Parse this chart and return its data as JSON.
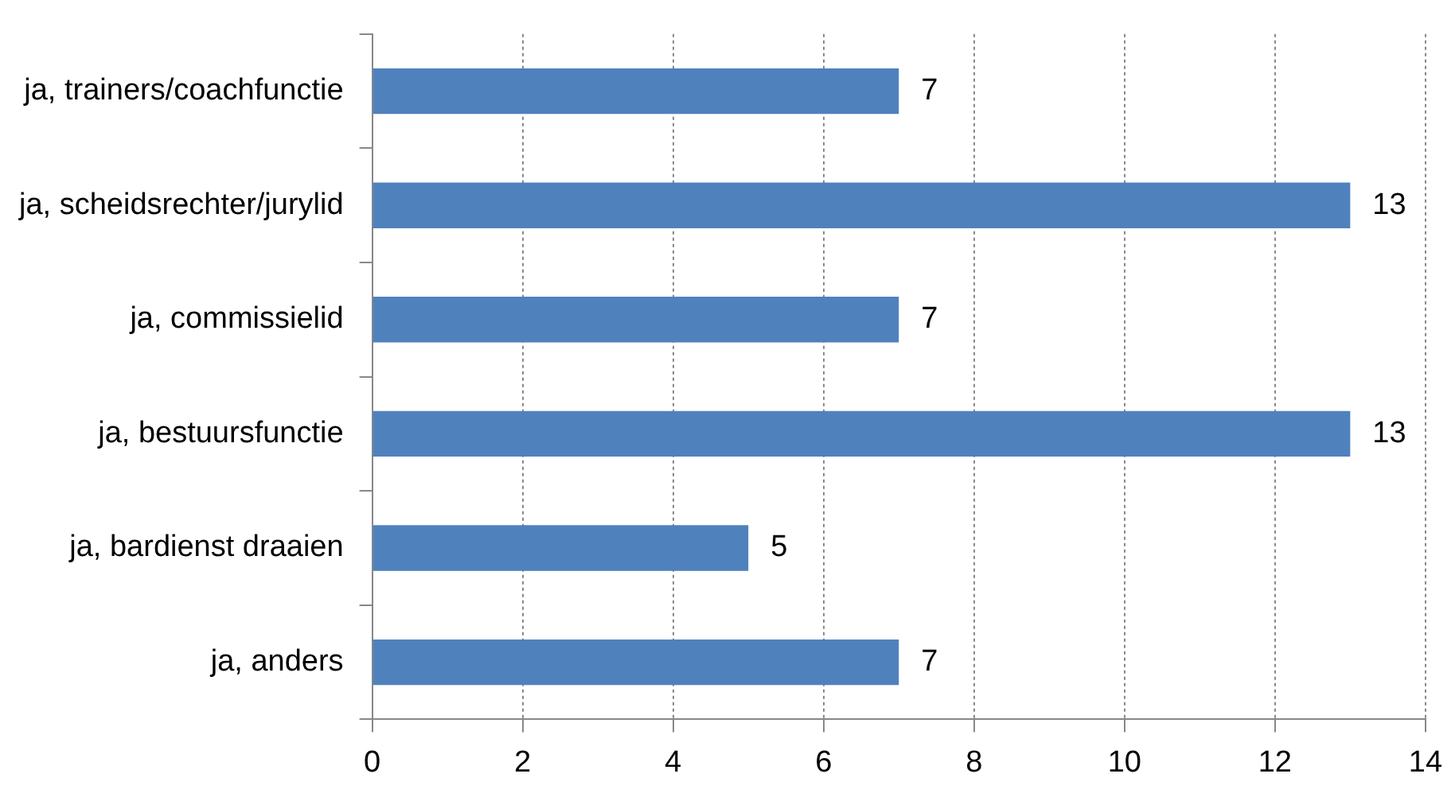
{
  "chart_data": {
    "type": "bar",
    "orientation": "horizontal",
    "categories": [
      "ja, trainers/coachfunctie",
      "ja, scheidsrechter/jurylid",
      "ja, commissielid",
      "ja, bestuursfunctie",
      "ja, bardienst draaien",
      "ja, anders"
    ],
    "values": [
      7,
      13,
      7,
      13,
      5,
      7
    ],
    "color": "#4f81bd",
    "xlim": [
      0,
      14
    ],
    "xticks": [
      0,
      2,
      4,
      6,
      8,
      10,
      12,
      14
    ],
    "grid": "x",
    "data_labels": true,
    "legend": false
  }
}
